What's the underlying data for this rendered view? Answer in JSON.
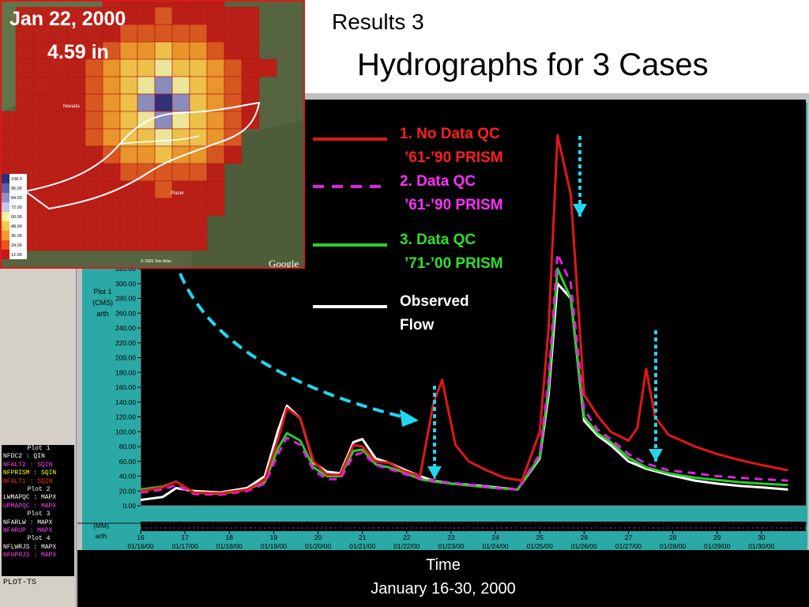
{
  "slide": {
    "subtitle": "Results 3",
    "title": "Hydrographs for 3 Cases"
  },
  "map_inset": {
    "date_label": "Jan 22, 2000",
    "amount_label": "4.59 in",
    "scale_values": [
      "108.0",
      "96.00",
      "84.00",
      "72.00",
      "60.00",
      "48.00",
      "36.00",
      "24.00",
      "12.00"
    ],
    "scale_colors": [
      "#2d2d7a",
      "#5e5fa8",
      "#8f90c8",
      "#c4c6e4",
      "#f7f0a0",
      "#f9c84a",
      "#f59a2a",
      "#e2561f",
      "#c21a14"
    ],
    "place_labels": [
      "Nevada",
      "Placer"
    ],
    "logo": "Google",
    "attribution": "© 2009 Tele Atlas"
  },
  "app_panel": {
    "plot_ts_label": "PLOT-TS",
    "legend_lines": [
      {
        "text": "Plot 1",
        "color": "#ffffff"
      },
      {
        "text": "NFDC2 : QIN",
        "color": "#ffffff"
      },
      {
        "text": "NFALT2 : SQIN",
        "color": "#ff44ff"
      },
      {
        "text": "NFPRISM : SQIN",
        "color": "#ffff00"
      },
      {
        "text": "NFALT1 : SQIN",
        "color": "#ff3030"
      },
      {
        "text": "Plot 2",
        "color": "#ffffff"
      },
      {
        "text": "LWMAPQC : MAPX",
        "color": "#ffffff"
      },
      {
        "text": "UPMAPQC : MAPX",
        "color": "#ff44ff"
      },
      {
        "text": "Plot 3",
        "color": "#ffffff"
      },
      {
        "text": "NFARLW : MAPX",
        "color": "#ffffff"
      },
      {
        "text": "NFARUP : MAPX",
        "color": "#ff44ff"
      },
      {
        "text": "Plot 4",
        "color": "#ffffff"
      },
      {
        "text": "NFLWRJS : MAPX",
        "color": "#ffffff"
      },
      {
        "text": "NFUPRJS : MAPX",
        "color": "#ff44ff"
      }
    ],
    "y_caption_1": "Plot 1",
    "y_caption_2": "(CMS)",
    "y_caption_3": "arth",
    "mm_caption": "(MM)",
    "mm_caption_2": "arth"
  },
  "chart_data": {
    "type": "line",
    "xlabel": "Time",
    "xlabel_2": "January 16-30, 2000",
    "ylabel": "(CMS)",
    "ylim": [
      0,
      320
    ],
    "xlim": [
      16,
      31
    ],
    "y_ticks": [
      "0.00",
      "20.00",
      "40.00",
      "60.00",
      "80.00",
      "100.00",
      "120.00",
      "140.00",
      "160.00",
      "180.00",
      "200.00",
      "220.00",
      "240.00",
      "260.00",
      "280.00",
      "300.00",
      "320.00"
    ],
    "x_ticks": [
      {
        "day": "16",
        "date": "01/16/00"
      },
      {
        "day": "17",
        "date": "01/17/00"
      },
      {
        "day": "18",
        "date": "01/18/00"
      },
      {
        "day": "19",
        "date": "01/19/00"
      },
      {
        "day": "20",
        "date": "01/20/00"
      },
      {
        "day": "21",
        "date": "01/21/00"
      },
      {
        "day": "22",
        "date": "01/22/00"
      },
      {
        "day": "23",
        "date": "01/23/00"
      },
      {
        "day": "24",
        "date": "01/24/00"
      },
      {
        "day": "25",
        "date": "01/25/00"
      },
      {
        "day": "26",
        "date": "01/26/00"
      },
      {
        "day": "27",
        "date": "01/27/00"
      },
      {
        "day": "28",
        "date": "01/28/00"
      },
      {
        "day": "29",
        "date": "01/29/00"
      },
      {
        "day": "30",
        "date": "01/30/00"
      }
    ],
    "series": [
      {
        "name": "1. No Data QC",
        "name_2": "’61-’90 PRISM",
        "color": "#e01818",
        "dash": false,
        "x": [
          16.0,
          16.5,
          16.8,
          17.2,
          17.8,
          18.4,
          18.8,
          19.1,
          19.3,
          19.6,
          19.9,
          20.2,
          20.5,
          20.8,
          21.0,
          21.3,
          21.6,
          21.9,
          22.3,
          22.6,
          22.8,
          22.9,
          23.1,
          23.4,
          23.8,
          24.2,
          24.6,
          25.0,
          25.2,
          25.4,
          25.7,
          26.0,
          26.3,
          26.6,
          27.0,
          27.2,
          27.4,
          27.6,
          27.9,
          28.5,
          29.0,
          29.5,
          30.0,
          30.6
        ],
        "y": [
          20,
          25,
          33,
          18,
          17,
          22,
          35,
          90,
          132,
          118,
          60,
          42,
          42,
          82,
          80,
          60,
          58,
          48,
          40,
          138,
          170,
          140,
          82,
          60,
          48,
          38,
          34,
          100,
          240,
          500,
          420,
          150,
          122,
          100,
          88,
          105,
          185,
          120,
          96,
          80,
          70,
          62,
          55,
          48
        ]
      },
      {
        "name": "2. Data QC",
        "name_2": "’61-’90 PRISM",
        "color": "#e020e0",
        "dash": true,
        "x": [
          16.0,
          16.5,
          16.8,
          17.2,
          17.8,
          18.4,
          18.8,
          19.1,
          19.3,
          19.6,
          19.9,
          20.2,
          20.5,
          20.8,
          21.0,
          21.3,
          21.6,
          21.9,
          22.3,
          22.6,
          23.0,
          23.5,
          24.0,
          24.5,
          25.0,
          25.2,
          25.4,
          25.7,
          26.0,
          26.3,
          26.6,
          27.0,
          27.4,
          27.9,
          28.5,
          29.0,
          29.5,
          30.0,
          30.6
        ],
        "y": [
          18,
          22,
          28,
          16,
          15,
          20,
          30,
          70,
          92,
          82,
          48,
          36,
          36,
          68,
          72,
          55,
          50,
          44,
          37,
          34,
          31,
          28,
          24,
          22,
          70,
          170,
          340,
          300,
          130,
          103,
          90,
          70,
          57,
          48,
          44,
          40,
          38,
          36,
          34
        ]
      },
      {
        "name": "3. Data QC",
        "name_2": "’71-’00 PRISM",
        "color": "#26d026",
        "dash": false,
        "x": [
          16.0,
          16.5,
          16.8,
          17.2,
          17.8,
          18.4,
          18.8,
          19.1,
          19.3,
          19.6,
          19.9,
          20.2,
          20.5,
          20.8,
          21.0,
          21.3,
          21.6,
          21.9,
          22.3,
          22.6,
          23.0,
          23.5,
          24.0,
          24.5,
          25.0,
          25.2,
          25.4,
          25.7,
          26.0,
          26.3,
          26.6,
          27.0,
          27.4,
          27.9,
          28.5,
          29.0,
          29.5,
          30.0,
          30.6
        ],
        "y": [
          22,
          26,
          33,
          18,
          16,
          22,
          32,
          78,
          98,
          88,
          52,
          40,
          40,
          74,
          76,
          56,
          52,
          46,
          36,
          33,
          30,
          27,
          24,
          22,
          66,
          160,
          320,
          280,
          120,
          98,
          86,
          65,
          52,
          44,
          38,
          35,
          32,
          30,
          28
        ]
      },
      {
        "name": "Observed",
        "name_2": "Flow",
        "color": "#ffffff",
        "dash": false,
        "x": [
          16.0,
          16.5,
          16.8,
          17.2,
          17.8,
          18.4,
          18.8,
          19.1,
          19.3,
          19.6,
          19.9,
          20.2,
          20.5,
          20.8,
          21.0,
          21.3,
          21.6,
          21.9,
          22.3,
          22.6,
          23.0,
          23.5,
          24.0,
          24.5,
          25.0,
          25.2,
          25.4,
          25.7,
          26.0,
          26.3,
          26.6,
          27.0,
          27.4,
          27.9,
          28.5,
          29.0,
          29.5,
          30.0,
          30.6
        ],
        "y": [
          8,
          12,
          24,
          20,
          18,
          24,
          40,
          102,
          135,
          118,
          58,
          46,
          44,
          86,
          90,
          64,
          58,
          50,
          40,
          34,
          30,
          28,
          25,
          22,
          64,
          150,
          300,
          280,
          115,
          95,
          82,
          60,
          50,
          42,
          34,
          30,
          27,
          25,
          22
        ]
      }
    ]
  }
}
